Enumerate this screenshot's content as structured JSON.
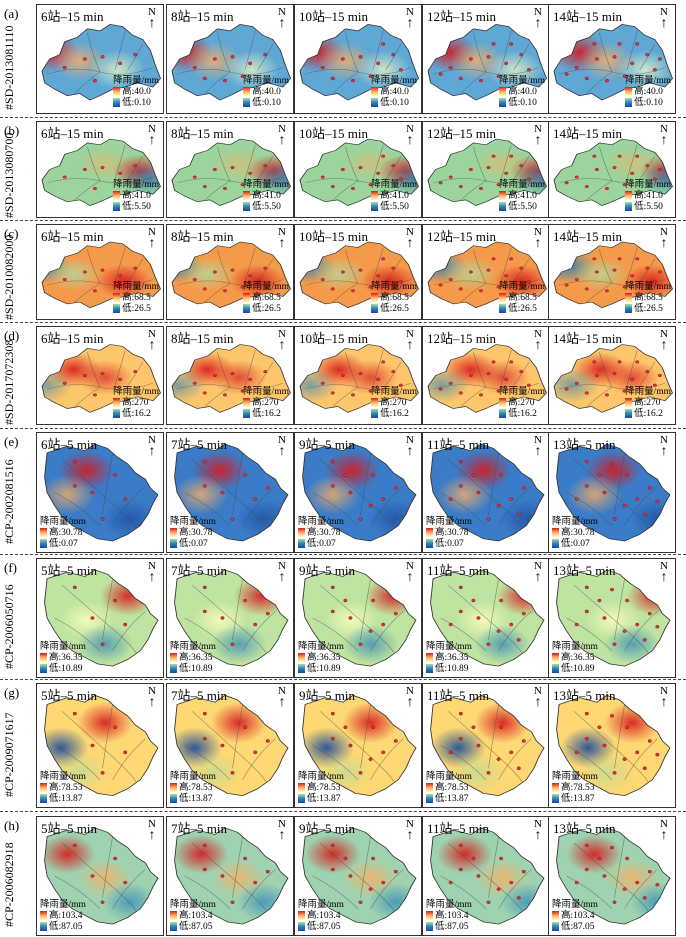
{
  "legend_unit": "降雨量/mm",
  "legend_high_prefix": "高",
  "legend_low_prefix": "低",
  "north_label": "N",
  "north_arrow": "↑",
  "rows": [
    {
      "label": "(a)",
      "id": "#SD-2013081110",
      "high": "40.0",
      "low": "0.10",
      "panels": [
        "6站–15 min",
        "8站–15 min",
        "10站–15 min",
        "12站–15 min",
        "14站–15 min"
      ]
    },
    {
      "label": "(b)",
      "id": "#SD-2013080700",
      "high": "41.0",
      "low": "5.50",
      "panels": [
        "6站–15 min",
        "8站–15 min",
        "10站–15 min",
        "12站–15 min",
        "14站–15 min"
      ]
    },
    {
      "label": "(c)",
      "id": "#SD-2010082000",
      "high": "68.5",
      "low": "26.5",
      "panels": [
        "6站–15 min",
        "8站–15 min",
        "10站–15 min",
        "12站–15 min",
        "14站–15 min"
      ]
    },
    {
      "label": "(d)",
      "id": "#SD-2017072308",
      "high": "270",
      "low": "16.2",
      "panels": [
        "6站–15 min",
        "8站–15 min",
        "10站–15 min",
        "12站–15 min",
        "14站–15 min"
      ]
    },
    {
      "label": "(e)",
      "id": "#CP-2002081516",
      "high": "30.78",
      "low": "0.07",
      "panels": [
        "6站–5 min",
        "7站–5 min",
        "9站–5 min",
        "11站–5 min",
        "13站–5 min"
      ]
    },
    {
      "label": "(f)",
      "id": "#CP-2006050716",
      "high": "36.35",
      "low": "10.89",
      "panels": [
        "5站–5 min",
        "7站–5 min",
        "9站–5 min",
        "11站–5 min",
        "13站–5 min"
      ]
    },
    {
      "label": "(g)",
      "id": "#CP-2009071617",
      "high": "78.53",
      "low": "13.87",
      "panels": [
        "5站–5 min",
        "7站–5 min",
        "9站–5 min",
        "11站–5 min",
        "13站–5 min"
      ]
    },
    {
      "label": "(h)",
      "id": "#CP-2006082918",
      "high": "103.4",
      "low": "87.05",
      "panels": [
        "5站–5 min",
        "7站–5 min",
        "9站–5 min",
        "11站–5 min",
        "13站–5 min"
      ]
    }
  ]
}
